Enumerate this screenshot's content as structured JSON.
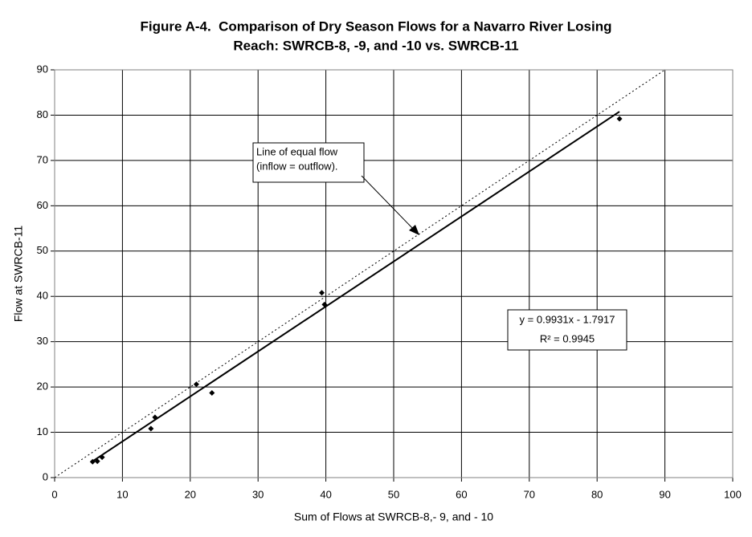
{
  "chart_data": {
    "type": "scatter",
    "title": [
      "Figure A-4.  Comparison of Dry Season Flows for a Navarro River Losing",
      "Reach: SWRCB-8, -9, and -10 vs. SWRCB-11"
    ],
    "xlabel": "Sum of Flows at SWRCB-8,- 9, and - 10",
    "ylabel": "Flow at SWRCB-11",
    "x": [
      5.6,
      6.3,
      7.0,
      14.2,
      14.8,
      20.9,
      23.2,
      39.4,
      39.8,
      83.3
    ],
    "values": [
      3.5,
      3.6,
      4.5,
      10.8,
      13.3,
      20.6,
      18.7,
      40.8,
      38.2,
      79.2
    ],
    "color": "#000000",
    "xlim": [
      0,
      100
    ],
    "xticks": [
      0,
      10,
      20,
      30,
      40,
      50,
      60,
      70,
      80,
      90,
      100
    ],
    "ylim": [
      0,
      90
    ],
    "yticks": [
      0,
      10,
      20,
      30,
      40,
      50,
      60,
      70,
      80,
      90
    ],
    "grid": true,
    "annotation": [
      "Line of equal flow",
      "(inflow = outflow)."
    ],
    "trendline_equation": "y = 0.9931x - 1.7917",
    "trendline_r_squared": "R² = 0.9945"
  }
}
